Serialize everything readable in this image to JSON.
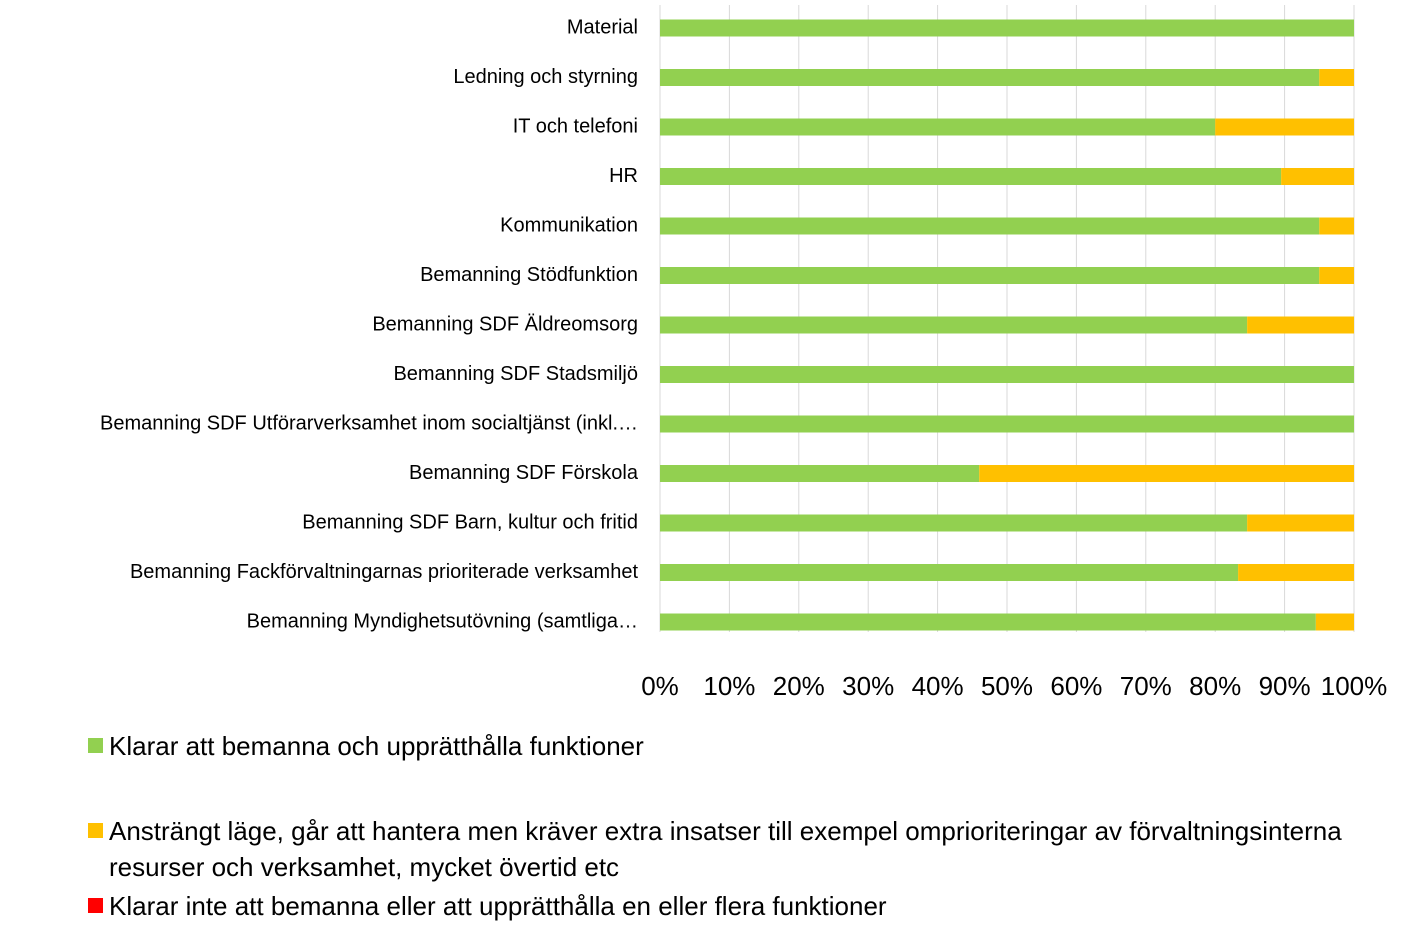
{
  "chart_data": {
    "type": "stacked-bar-horizontal",
    "categories": [
      "Material",
      "Ledning och styrning",
      "IT och telefoni",
      "HR",
      "Kommunikation",
      "Bemanning Stödfunktion",
      "Bemanning SDF Äldreomsorg",
      "Bemanning SDF Stadsmiljö",
      "Bemanning SDF Utförarverksamhet inom socialtjänst (inkl.…",
      "Bemanning SDF Förskola",
      "Bemanning SDF Barn, kultur och fritid",
      "Bemanning Fackförvaltningarnas prioriterade verksamhet",
      "Bemanning Myndighetsutövning (samtliga…"
    ],
    "series": [
      {
        "name": "Klarar att bemanna och upprätthålla funktioner",
        "color": "#92d050",
        "values": [
          100,
          95,
          80,
          89.5,
          95,
          95,
          84.6,
          100,
          100,
          46,
          84.6,
          83.3,
          94.5
        ]
      },
      {
        "name": "Ansträngt läge, går att hantera men kräver extra insatser till exempel omprioriteringar av förvaltningsinterna resurser och verksamhet, mycket övertid etc",
        "color": "#ffc000",
        "values": [
          0,
          5,
          20,
          10.5,
          5,
          5,
          15.4,
          0,
          0,
          54,
          15.4,
          16.7,
          5.5
        ]
      },
      {
        "name": "Klarar inte att bemanna eller att upprätthålla en eller flera funktioner",
        "color": "#ff0000",
        "values": [
          0,
          0,
          0,
          0,
          0,
          0,
          0,
          0,
          0,
          0,
          0,
          0,
          0
        ]
      }
    ],
    "xlim": [
      0,
      100
    ],
    "xticks": [
      {
        "value": 0,
        "label": "0%"
      },
      {
        "value": 10,
        "label": "10%"
      },
      {
        "value": 20,
        "label": "20%"
      },
      {
        "value": 30,
        "label": "30%"
      },
      {
        "value": 40,
        "label": "40%"
      },
      {
        "value": 50,
        "label": "50%"
      },
      {
        "value": 60,
        "label": "60%"
      },
      {
        "value": 70,
        "label": "70%"
      },
      {
        "value": 80,
        "label": "80%"
      },
      {
        "value": 90,
        "label": "90%"
      },
      {
        "value": 100,
        "label": "100%"
      }
    ],
    "grid": true
  }
}
